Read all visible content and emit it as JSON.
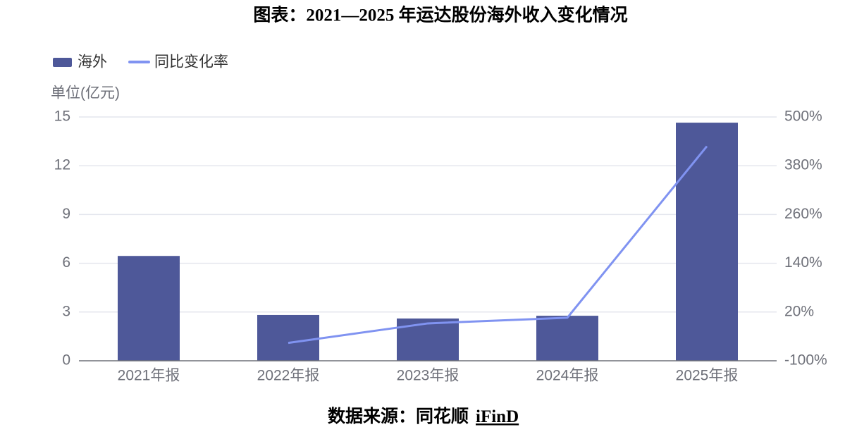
{
  "chart_data": {
    "type": "bar",
    "title": "图表：2021—2025 年运达股份海外收入变化情况",
    "y_unit": "单位(亿元)",
    "categories": [
      "2021年报",
      "2022年报",
      "2023年报",
      "2024年报",
      "2025年报"
    ],
    "series": [
      {
        "name": "海外",
        "type": "bar",
        "color": "#4e5899",
        "values": [
          6.45,
          2.82,
          2.6,
          2.77,
          14.65
        ]
      },
      {
        "name": "同比变化率",
        "type": "line",
        "axis": "y2",
        "color": "#8093f1",
        "values": [
          null,
          -56,
          -8,
          6,
          428
        ]
      }
    ],
    "ylim": [
      0,
      15
    ],
    "yticks": [
      0,
      3,
      6,
      9,
      12,
      15
    ],
    "y2lim": [
      -100,
      500
    ],
    "y2ticks": [
      {
        "value": -100,
        "label": "-100%"
      },
      {
        "value": 20,
        "label": "20%"
      },
      {
        "value": 140,
        "label": "140%"
      },
      {
        "value": 260,
        "label": "260%"
      },
      {
        "value": 380,
        "label": "380%"
      },
      {
        "value": 500,
        "label": "500%"
      }
    ],
    "grid": true,
    "legend": "top-left",
    "source": "数据来源：同花顺",
    "source_name": "iFinD"
  }
}
